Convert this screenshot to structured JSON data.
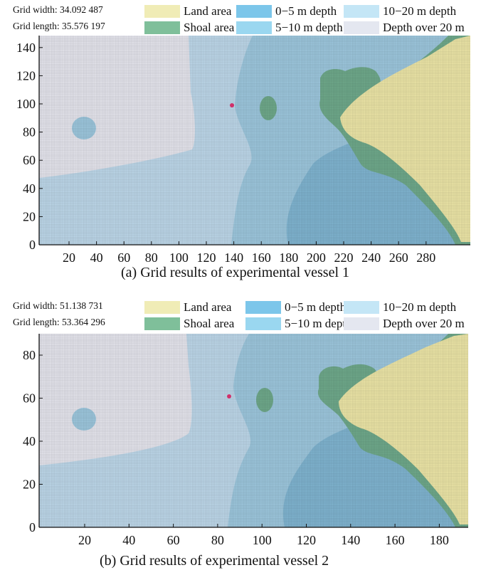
{
  "legend": {
    "land": {
      "label": "Land area",
      "color": "#f0ecb6"
    },
    "shoal": {
      "label": "Shoal area",
      "color": "#7fbf9a"
    },
    "d0_5": {
      "label": "0−5 m depth",
      "color": "#7cc6ea"
    },
    "d5_10": {
      "label": "5−10 m depth",
      "color": "#9ad7f0"
    },
    "d10_20": {
      "label": "10−20 m depth",
      "color": "#c4e6f6"
    },
    "d20": {
      "label": "Depth over 20 m",
      "color": "#e4e7f0"
    }
  },
  "panels": [
    {
      "id": "a",
      "grid_width": "Grid width: 34.092 487",
      "grid_length": "Grid length: 35.576 197",
      "caption": "(a) Grid results of experimental vessel 1",
      "x_ticks": [
        "20",
        "40",
        "60",
        "80",
        "100",
        "120",
        "140",
        "160",
        "180",
        "200",
        "220",
        "240",
        "260",
        "280"
      ],
      "y_ticks": [
        "0",
        "20",
        "40",
        "60",
        "80",
        "100",
        "120",
        "140"
      ]
    },
    {
      "id": "b",
      "grid_width": "Grid width: 51.138 731",
      "grid_length": "Grid length: 53.364 296",
      "caption": "(b) Grid results of experimental vessel 2",
      "x_ticks": [
        "20",
        "40",
        "60",
        "80",
        "100",
        "120",
        "140",
        "160",
        "180"
      ],
      "y_ticks": [
        "0",
        "20",
        "40",
        "60",
        "80"
      ]
    }
  ]
}
